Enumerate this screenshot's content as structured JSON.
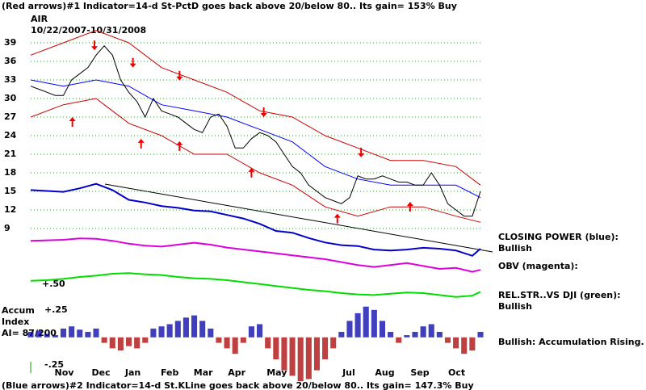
{
  "chart_data": {
    "type": "line",
    "title": "(Red arrows)#1 Indicator=14-d St-PctD goes back above 20/below 80..  Its gain= 153% Buy",
    "symbol": "AIR",
    "date_range": "10/22/2007-10/31/2008",
    "footer": "(Blue arrows)#2 Indicator=14-d St.KLine goes back above 20/below 80.. Its gain= 147.3% Buy",
    "xlim": [
      0,
      55
    ],
    "ylim": [
      9,
      39
    ],
    "yticks": [
      9,
      12,
      15,
      18,
      21,
      24,
      27,
      30,
      33,
      36,
      39
    ],
    "grid": true,
    "grid_color": "#339933",
    "xticks": [
      {
        "value": 4.1,
        "label": "Nov"
      },
      {
        "value": 8.6,
        "label": "Dec"
      },
      {
        "value": 12.5,
        "label": "Jan"
      },
      {
        "value": 17,
        "label": "Feb"
      },
      {
        "value": 21.1,
        "label": "Mar"
      },
      {
        "value": 25.2,
        "label": "Apr"
      },
      {
        "value": 30.1,
        "label": "May"
      },
      {
        "value": 38.9,
        "label": "Jul"
      },
      {
        "value": 43.3,
        "label": "Aug"
      },
      {
        "value": 47.6,
        "label": "Sep"
      },
      {
        "value": 52.1,
        "label": "Oct"
      }
    ],
    "x": [
      0,
      1,
      2,
      3,
      4,
      5,
      6,
      7,
      8,
      9,
      10,
      11,
      12,
      13,
      14,
      15,
      16,
      17,
      18,
      19,
      20,
      21,
      22,
      23,
      24,
      25,
      26,
      27,
      28,
      29,
      30,
      31,
      32,
      33,
      34,
      35,
      36,
      37,
      38,
      39,
      40,
      41,
      42,
      43,
      44,
      45,
      46,
      47,
      48,
      49,
      50,
      51,
      52,
      53,
      54,
      55
    ],
    "series": [
      {
        "color": "#000000",
        "values": [
          32,
          31.5,
          31,
          30.5,
          30.5,
          33,
          34,
          35,
          37,
          38.5,
          37,
          33,
          31,
          29.5,
          27,
          30,
          28,
          27.5,
          27,
          26,
          25,
          24.5,
          27,
          27.5,
          25.5,
          22,
          22,
          23.5,
          24.5,
          24,
          23,
          21,
          19,
          18,
          16,
          15,
          14,
          13.5,
          13,
          14,
          17.5,
          17,
          17,
          17.5,
          17,
          16.5,
          16.5,
          16,
          16,
          18,
          16,
          13,
          12,
          11,
          11,
          15
        ]
      }
    ],
    "bands": {
      "x": [
        0,
        4,
        8,
        12,
        16,
        20,
        24,
        28,
        32,
        36,
        40,
        44,
        48,
        52,
        55
      ],
      "series": [
        {
          "color": "#cc0000",
          "values": [
            37,
            39,
            41,
            39,
            35,
            33,
            31,
            28,
            27,
            24,
            22,
            20,
            20,
            19,
            16
          ]
        },
        {
          "color": "#cc0000",
          "values": [
            27,
            29,
            30,
            26,
            24,
            21,
            21,
            18,
            16,
            12.5,
            11,
            12.5,
            12.5,
            11,
            10
          ]
        },
        {
          "color": "#0000ff",
          "values": [
            33,
            32,
            33,
            32,
            29,
            28,
            27,
            25,
            23,
            19,
            17,
            16,
            16,
            16,
            14
          ]
        }
      ]
    },
    "arrows": {
      "color": "#ee0000",
      "sell": [
        {
          "x": 7.8,
          "y": 37.8
        },
        {
          "x": 12.5,
          "y": 35
        },
        {
          "x": 18.2,
          "y": 32.9
        },
        {
          "x": 28.5,
          "y": 27
        },
        {
          "x": 40.4,
          "y": 20.5
        }
      ],
      "buy": [
        {
          "x": 5.1,
          "y": 27
        },
        {
          "x": 13.5,
          "y": 23.5
        },
        {
          "x": 18.2,
          "y": 23.1
        },
        {
          "x": 27,
          "y": 18.8
        },
        {
          "x": 37.5,
          "y": 11.4
        },
        {
          "x": 46.4,
          "y": 13.3
        }
      ]
    },
    "indicators": [
      {
        "label": "CLOSING POWER (blue):",
        "status": "Bullish",
        "color": "#0000cc",
        "ylim": [
          0,
          100
        ],
        "x": [
          0,
          2,
          4,
          6,
          8,
          10,
          12,
          14,
          16,
          18,
          20,
          22,
          24,
          26,
          28,
          30,
          32,
          34,
          36,
          38,
          40,
          42,
          44,
          46,
          48,
          50,
          52,
          54,
          55
        ],
        "values": [
          86,
          85,
          84,
          88,
          93,
          86,
          75,
          72,
          68,
          66,
          63,
          62,
          58,
          54,
          48,
          40,
          38,
          32,
          27,
          24,
          23,
          19,
          18,
          19,
          21,
          20,
          18,
          12,
          20
        ]
      },
      {
        "label": "OBV (magenta):",
        "color": "#dd00dd",
        "ylim": [
          0,
          100
        ],
        "x": [
          0,
          2,
          4,
          6,
          8,
          10,
          12,
          14,
          16,
          18,
          20,
          22,
          24,
          26,
          28,
          30,
          32,
          34,
          36,
          38,
          40,
          42,
          44,
          46,
          48,
          50,
          52,
          54,
          55
        ],
        "values": [
          78,
          79,
          80,
          83,
          82,
          78,
          72,
          68,
          66,
          70,
          74,
          70,
          64,
          60,
          56,
          52,
          48,
          44,
          40,
          34,
          28,
          24,
          28,
          32,
          26,
          20,
          22,
          14,
          18
        ]
      },
      {
        "label": "REL.STR..VS DJI (green):",
        "status": "Bullish",
        "level_label": "+.50",
        "color": "#00dd00",
        "ylim": [
          0,
          100
        ],
        "x": [
          0,
          2,
          4,
          6,
          8,
          10,
          12,
          14,
          16,
          18,
          20,
          22,
          24,
          26,
          28,
          30,
          32,
          34,
          36,
          38,
          40,
          42,
          44,
          46,
          48,
          50,
          52,
          54,
          55
        ],
        "values": [
          68,
          70,
          74,
          80,
          84,
          90,
          92,
          88,
          86,
          80,
          76,
          74,
          70,
          64,
          58,
          52,
          46,
          40,
          36,
          30,
          26,
          24,
          28,
          32,
          30,
          24,
          18,
          22,
          34
        ]
      }
    ],
    "accum": {
      "label": [
        "Accum",
        "Index",
        "AI= 87/200"
      ],
      "status": "Bullish: Accumulation Rising.",
      "ylim": [
        -0.45,
        0.3
      ],
      "yticks": [
        {
          "value": 0.25,
          "label": "+.25"
        },
        {
          "value": -0.25,
          "label": "-.25"
        }
      ],
      "positive_color": "#0000aa",
      "negative_color": "#aa0000",
      "values": [
        0.05,
        0.06,
        0.03,
        0.02,
        0.08,
        0.1,
        0.07,
        0.05,
        0.08,
        -0.05,
        -0.1,
        -0.12,
        -0.08,
        -0.1,
        -0.05,
        0.08,
        0.1,
        0.12,
        0.15,
        0.18,
        0.2,
        0.15,
        0.08,
        -0.05,
        -0.1,
        -0.15,
        -0.05,
        0.1,
        0.12,
        -0.1,
        -0.2,
        -0.3,
        -0.35,
        -0.4,
        -0.38,
        -0.3,
        -0.2,
        -0.1,
        0.05,
        0.15,
        0.22,
        0.28,
        0.25,
        0.15,
        0.05,
        -0.05,
        0.02,
        0.05,
        0.1,
        0.12,
        0.05,
        -0.05,
        -0.1,
        -0.15,
        -0.12,
        0.05
      ]
    }
  }
}
